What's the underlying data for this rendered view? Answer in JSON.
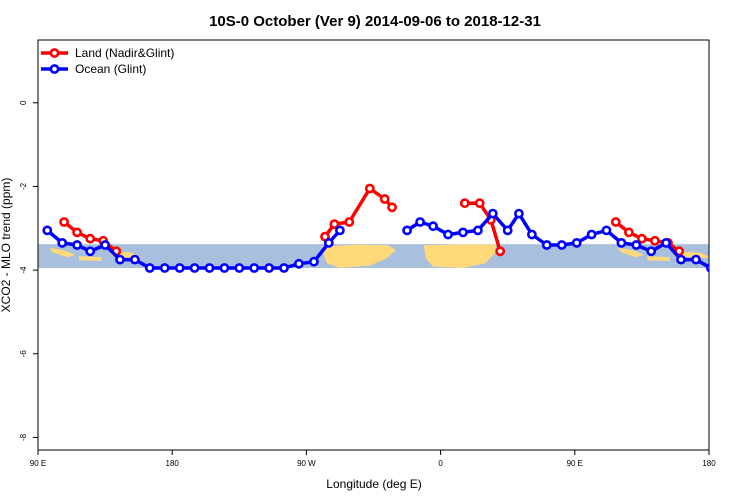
{
  "chart_data": {
    "type": "line",
    "title": "10S-0 October (Ver 9)   2014-09-06 to 2018-12-31",
    "xlabel": "Longitude (deg E)",
    "ylabel": "XCO2 - MLO trend (ppm)",
    "xlim": [
      90,
      450
    ],
    "ylim": [
      -8.3,
      1.5
    ],
    "x_ticks": [
      {
        "value": 90,
        "label": "90 E"
      },
      {
        "value": 162,
        "label": "180"
      },
      {
        "value": 234,
        "label": "90 W"
      },
      {
        "value": 306,
        "label": "0"
      },
      {
        "value": 378,
        "label": "90 E"
      },
      {
        "value": 450,
        "label": "180"
      }
    ],
    "y_ticks": [
      0,
      -2,
      -4,
      -6,
      -8
    ],
    "grid": false,
    "legend_position": "top-left",
    "map_band": {
      "y_range": [
        -3.95,
        -3.38
      ],
      "ocean_color": "#a8bfdd",
      "land_color": "#ffd97a"
    },
    "series": [
      {
        "name": "Land (Nadir&Glint)",
        "color": "#ff0000",
        "segments": [
          [
            [
              104,
              -2.85
            ],
            [
              111,
              -3.1
            ],
            [
              118,
              -3.25
            ],
            [
              125,
              -3.3
            ],
            [
              132,
              -3.55
            ]
          ],
          [
            [
              244,
              -3.2
            ],
            [
              249,
              -2.9
            ],
            [
              257,
              -2.85
            ],
            [
              268,
              -2.05
            ],
            [
              276,
              -2.3
            ],
            [
              280,
              -2.5
            ]
          ],
          [
            [
              319,
              -2.4
            ],
            [
              327,
              -2.4
            ],
            [
              333,
              -2.8
            ],
            [
              338,
              -3.55
            ]
          ],
          [
            [
              400,
              -2.85
            ],
            [
              407,
              -3.1
            ],
            [
              414,
              -3.25
            ],
            [
              421,
              -3.3
            ],
            [
              428,
              -3.35
            ],
            [
              434,
              -3.55
            ]
          ]
        ]
      },
      {
        "name": "Ocean (Glint)",
        "color": "#0000ff",
        "segments": [
          [
            [
              95,
              -3.05
            ],
            [
              103,
              -3.35
            ],
            [
              111,
              -3.4
            ],
            [
              118,
              -3.55
            ],
            [
              126,
              -3.4
            ],
            [
              134,
              -3.75
            ],
            [
              142,
              -3.75
            ],
            [
              150,
              -3.95
            ],
            [
              158,
              -3.95
            ],
            [
              166,
              -3.95
            ],
            [
              174,
              -3.95
            ],
            [
              182,
              -3.95
            ],
            [
              190,
              -3.95
            ],
            [
              198,
              -3.95
            ],
            [
              206,
              -3.95
            ],
            [
              214,
              -3.95
            ],
            [
              222,
              -3.95
            ],
            [
              230,
              -3.85
            ],
            [
              238,
              -3.8
            ],
            [
              246,
              -3.35
            ],
            [
              252,
              -3.05
            ]
          ],
          [
            [
              288,
              -3.05
            ],
            [
              295,
              -2.85
            ],
            [
              302,
              -2.95
            ],
            [
              310,
              -3.15
            ],
            [
              318,
              -3.1
            ],
            [
              326,
              -3.05
            ],
            [
              334,
              -2.65
            ],
            [
              342,
              -3.05
            ],
            [
              348,
              -2.65
            ],
            [
              355,
              -3.15
            ],
            [
              363,
              -3.4
            ],
            [
              371,
              -3.4
            ],
            [
              379,
              -3.35
            ],
            [
              387,
              -3.15
            ],
            [
              395,
              -3.05
            ],
            [
              403,
              -3.35
            ],
            [
              411,
              -3.4
            ],
            [
              419,
              -3.55
            ],
            [
              427,
              -3.35
            ],
            [
              435,
              -3.75
            ],
            [
              443,
              -3.75
            ],
            [
              451,
              -3.95
            ],
            [
              459,
              -3.95
            ]
          ]
        ]
      }
    ]
  }
}
